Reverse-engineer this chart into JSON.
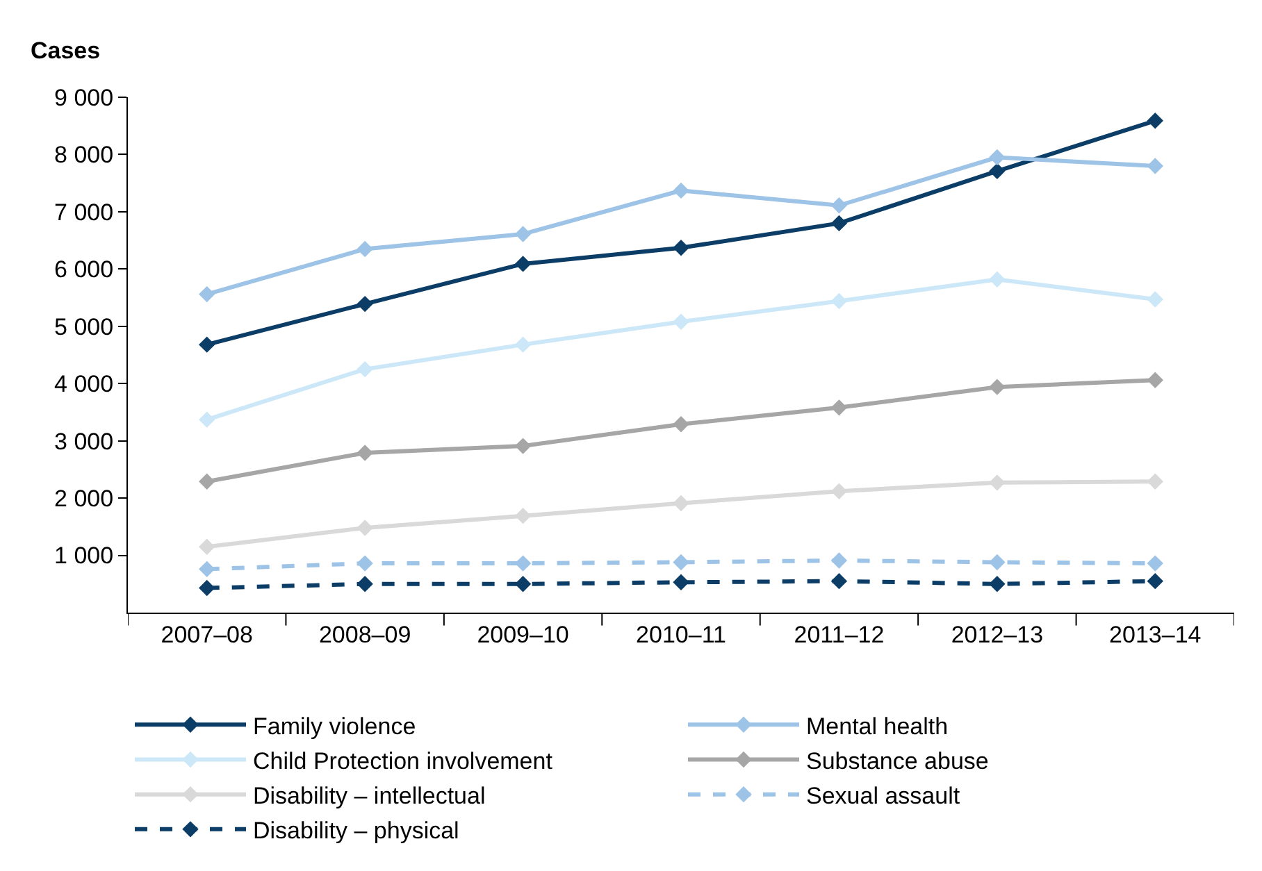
{
  "chart_data": {
    "type": "line",
    "ylabel": "Cases",
    "categories": [
      "2007–08",
      "2008–09",
      "2009–10",
      "2010–11",
      "2011–12",
      "2012–13",
      "2013–14"
    ],
    "ylim": [
      0,
      9000
    ],
    "yticks": [
      {
        "value": 1000,
        "label": "1 000"
      },
      {
        "value": 2000,
        "label": "2 000"
      },
      {
        "value": 3000,
        "label": "3 000"
      },
      {
        "value": 4000,
        "label": "4 000"
      },
      {
        "value": 5000,
        "label": "5 000"
      },
      {
        "value": 6000,
        "label": "6 000"
      },
      {
        "value": 7000,
        "label": "7 000"
      },
      {
        "value": 8000,
        "label": "8 000"
      },
      {
        "value": 9000,
        "label": "9 000"
      }
    ],
    "legend": "bottom",
    "marker": "diamond",
    "series": [
      {
        "name": "Family violence",
        "color": "#0b3d66",
        "line_style": "solid",
        "values": [
          4680,
          5390,
          6090,
          6370,
          6800,
          7710,
          8590
        ]
      },
      {
        "name": "Mental health",
        "color": "#9dc3e6",
        "line_style": "solid",
        "values": [
          5560,
          6350,
          6610,
          7370,
          7110,
          7950,
          7800
        ]
      },
      {
        "name": "Child Protection involvement",
        "color": "#cce8f8",
        "line_style": "solid",
        "values": [
          3370,
          4250,
          4680,
          5080,
          5440,
          5820,
          5470
        ]
      },
      {
        "name": "Substance abuse",
        "color": "#a6a6a6",
        "line_style": "solid",
        "values": [
          2290,
          2790,
          2910,
          3290,
          3580,
          3940,
          4060
        ]
      },
      {
        "name": "Disability – intellectual",
        "color": "#d9d9d9",
        "line_style": "solid",
        "values": [
          1150,
          1480,
          1690,
          1910,
          2120,
          2270,
          2290
        ]
      },
      {
        "name": "Sexual assault",
        "color": "#9dc3e6",
        "line_style": "dashed",
        "values": [
          760,
          860,
          860,
          880,
          910,
          880,
          860
        ]
      },
      {
        "name": "Disability – physical",
        "color": "#0b3d66",
        "line_style": "dashed",
        "values": [
          430,
          500,
          500,
          530,
          550,
          500,
          550
        ]
      }
    ]
  }
}
